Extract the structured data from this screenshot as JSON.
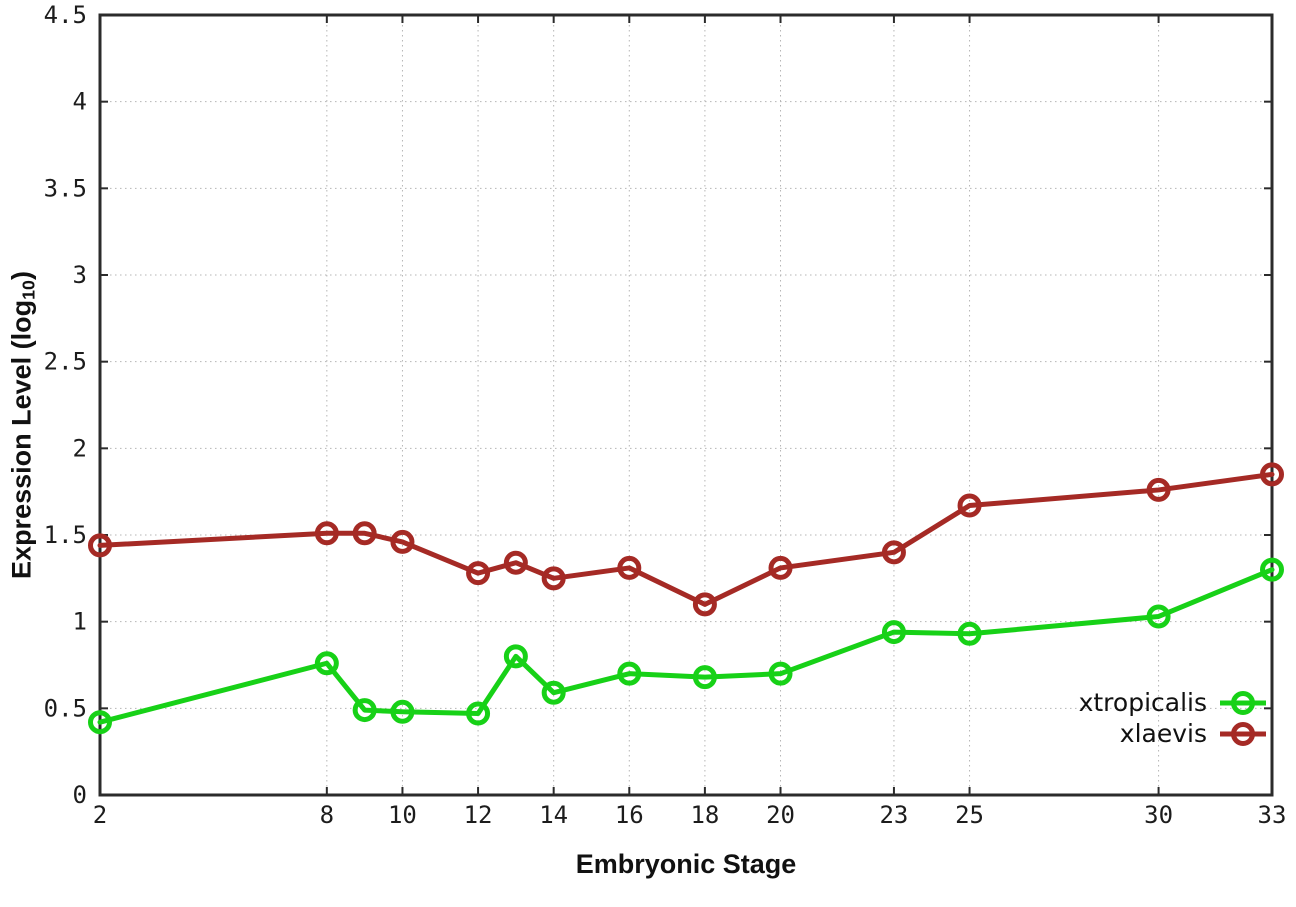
{
  "chart_data": {
    "type": "line",
    "title": "",
    "xlabel": "Embryonic Stage",
    "ylabel": {
      "base": "Expression Level (log",
      "sub": "10",
      "suffix": ")"
    },
    "x": [
      2,
      8,
      9,
      10,
      12,
      13,
      14,
      16,
      18,
      20,
      23,
      25,
      30,
      33
    ],
    "xtick_labels": [
      "2",
      "8",
      "10",
      "12",
      "14",
      "16",
      "18",
      "20",
      "23",
      "25",
      "30",
      "33"
    ],
    "ytick_labels": [
      "0",
      "0.5",
      "1",
      "1.5",
      "2",
      "2.5",
      "3",
      "3.5",
      "4",
      "4.5"
    ],
    "xlim": [
      2,
      33
    ],
    "ylim": [
      0,
      4.5
    ],
    "grid": true,
    "legend_position": "inside-bottom-right",
    "series": [
      {
        "name": "xtropicalis",
        "color": "#17d117",
        "marker": "open-circle",
        "values": [
          0.42,
          0.76,
          0.49,
          0.48,
          0.47,
          0.8,
          0.59,
          0.7,
          0.68,
          0.7,
          0.94,
          0.93,
          1.03,
          1.3
        ]
      },
      {
        "name": "xlaevis",
        "color": "#a52a25",
        "marker": "open-circle",
        "values": [
          1.44,
          1.51,
          1.51,
          1.46,
          1.28,
          1.34,
          1.25,
          1.31,
          1.1,
          1.31,
          1.4,
          1.67,
          1.76,
          1.85
        ]
      }
    ],
    "colors": {
      "grid": "#b5b5b5",
      "axis": "#2b2b2b",
      "text": "#1c1c1c",
      "background": "#ffffff"
    }
  }
}
